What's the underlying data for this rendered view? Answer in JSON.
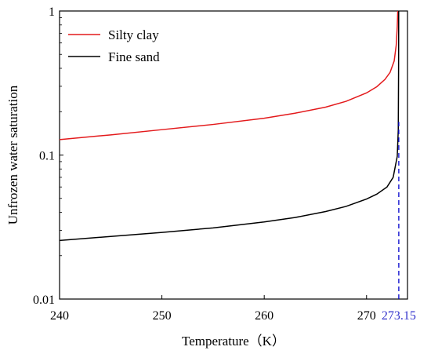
{
  "chart_data": {
    "type": "line",
    "title": "",
    "xlabel": "Temperature（K）",
    "ylabel": "Unfrozen water saturation",
    "xlim": [
      240,
      274
    ],
    "ylim": [
      0.01,
      1
    ],
    "yscale": "log",
    "x_ticks": [
      240,
      250,
      260,
      270
    ],
    "y_ticks": [
      0.01,
      0.1,
      1
    ],
    "x_tick_labels": [
      "240",
      "250",
      "260",
      "270"
    ],
    "y_tick_labels": [
      "0.01",
      "0.1",
      "1"
    ],
    "legend_placement": "top-left",
    "grid": false,
    "series": [
      {
        "name": "Silty clay",
        "color": "#e31a1c",
        "x": [
          240,
          245,
          250,
          255,
          260,
          263,
          266,
          268,
          270,
          271,
          271.8,
          272.3,
          272.7,
          272.9,
          273.0,
          273.05
        ],
        "y": [
          0.128,
          0.138,
          0.15,
          0.163,
          0.18,
          0.195,
          0.215,
          0.236,
          0.27,
          0.298,
          0.335,
          0.375,
          0.45,
          0.58,
          0.78,
          1.0
        ]
      },
      {
        "name": "Fine sand",
        "color": "#000000",
        "x": [
          240,
          245,
          250,
          255,
          260,
          263,
          266,
          268,
          270,
          271,
          272,
          272.6,
          273.0,
          273.1,
          273.13,
          273.14
        ],
        "y": [
          0.0255,
          0.0272,
          0.029,
          0.0312,
          0.0343,
          0.0368,
          0.0405,
          0.044,
          0.0495,
          0.0535,
          0.06,
          0.07,
          0.098,
          0.15,
          0.4,
          1.0
        ]
      }
    ],
    "annotations": [
      {
        "type": "vline",
        "x": 273.15,
        "style": "dashed",
        "color": "#0000cc",
        "from_y": 0.01,
        "to_y": 0.17,
        "label": "273.15",
        "label_color": "#3333cc"
      }
    ]
  }
}
